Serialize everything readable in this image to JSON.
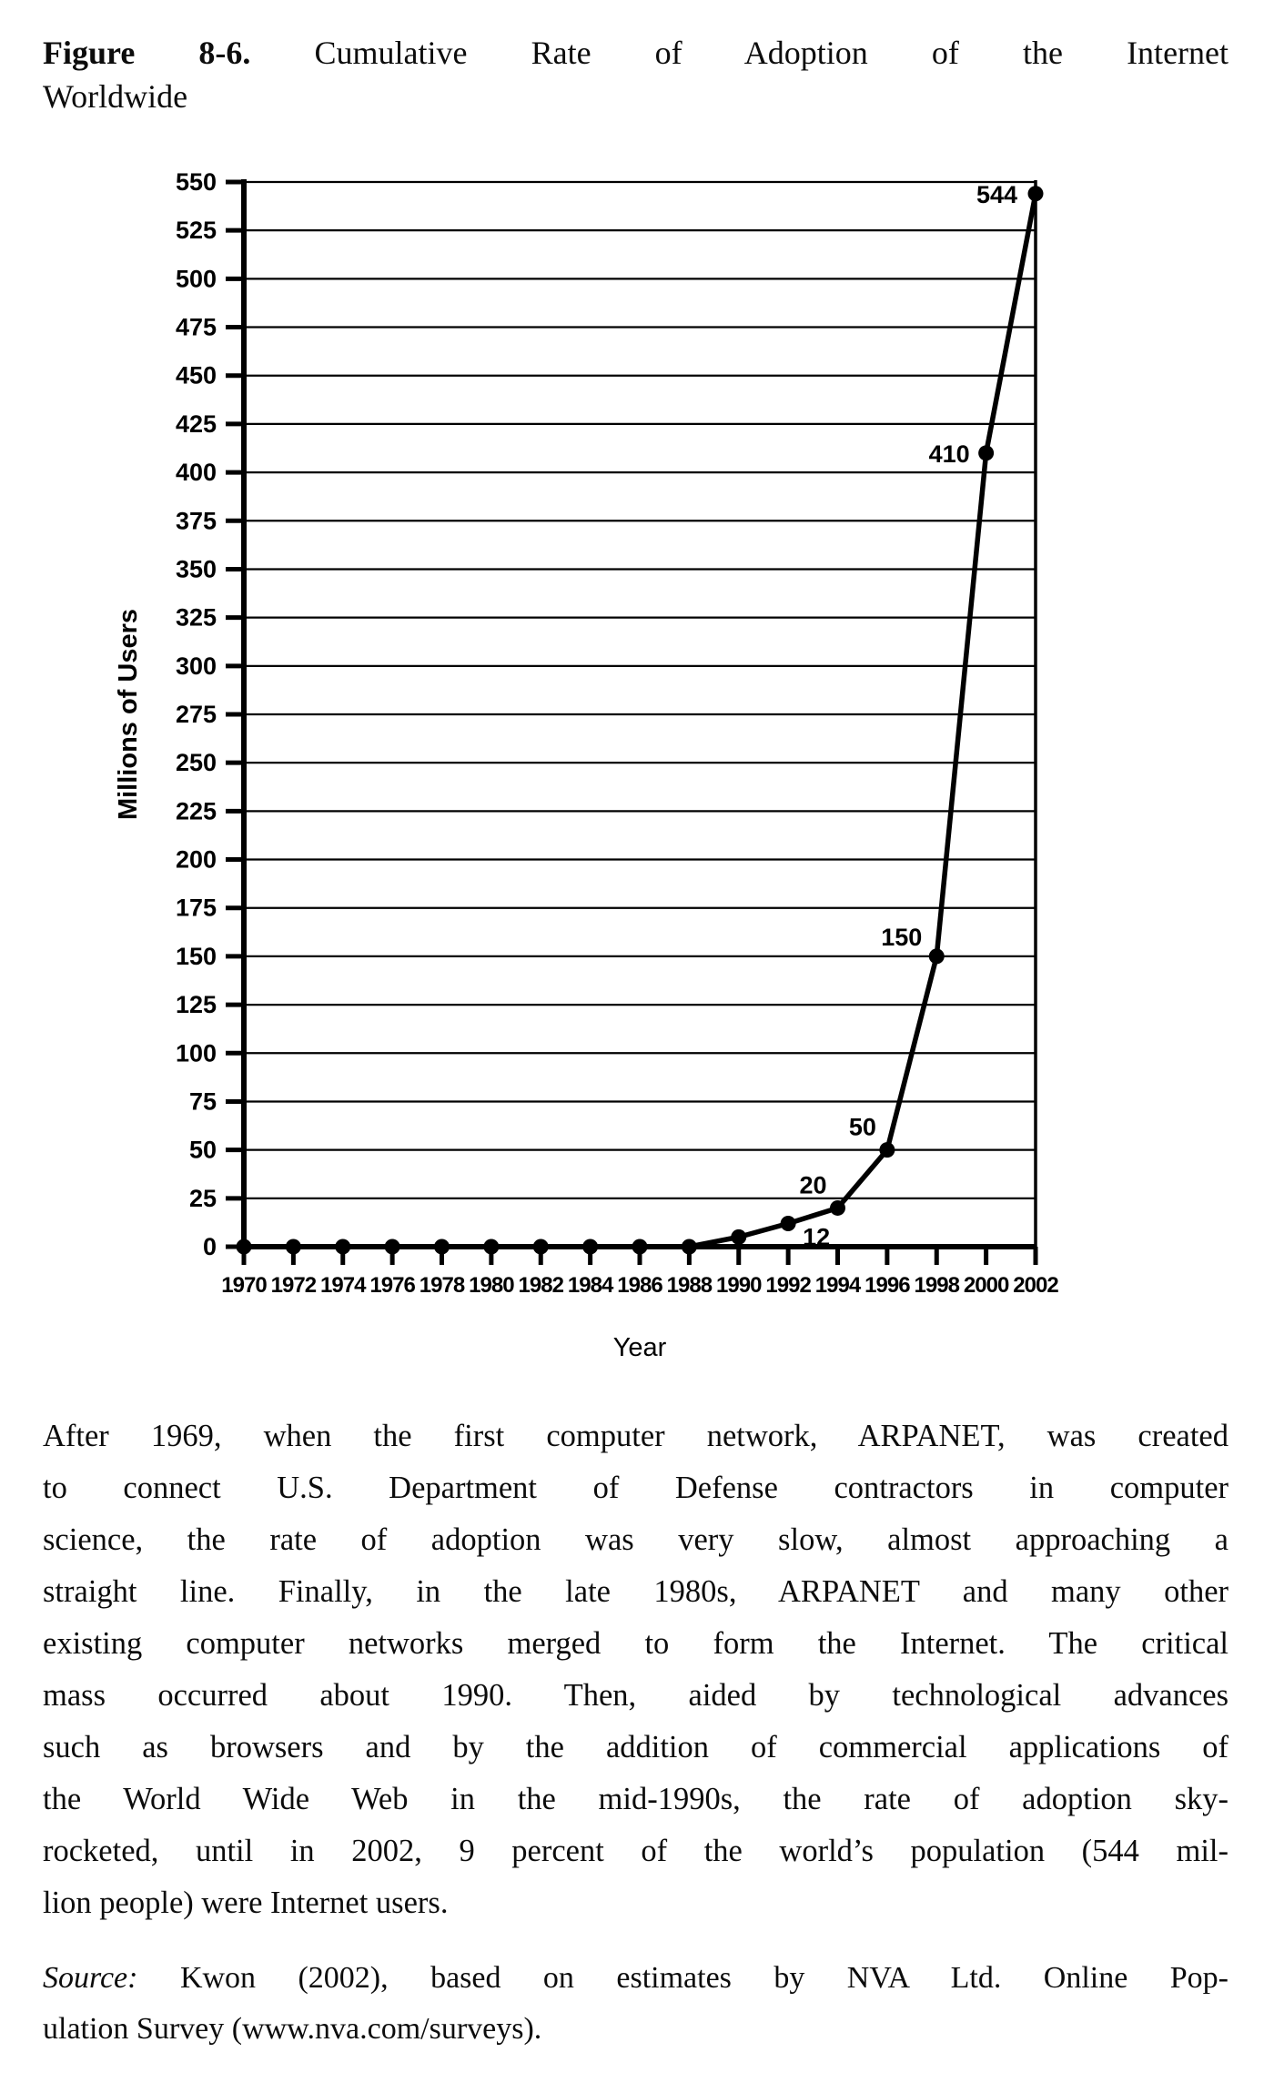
{
  "figure_caption": {
    "label": "Figure 8-6.",
    "title_line1": "Cumulative Rate of Adoption of the Internet",
    "title_line2": "Worldwide"
  },
  "chart_data": {
    "type": "line",
    "title": "Cumulative Rate of Adoption of the Internet Worldwide",
    "x": [
      1970,
      1972,
      1974,
      1976,
      1978,
      1980,
      1982,
      1984,
      1986,
      1988,
      1990,
      1992,
      1994,
      1996,
      1998,
      2000,
      2002
    ],
    "y": [
      0,
      0,
      0,
      0,
      0,
      0,
      0,
      0,
      0,
      0,
      5,
      12,
      20,
      50,
      150,
      410,
      544
    ],
    "point_labels": [
      "",
      "",
      "",
      "",
      "",
      "",
      "",
      "",
      "",
      "",
      "",
      "12",
      "20",
      "50",
      "150",
      "410",
      "544"
    ],
    "xlabel": "Year",
    "ylabel": "Millions of Users",
    "ylim": [
      0,
      550
    ],
    "ytick_step": 25,
    "xtick_step": 2,
    "grid": "horizontal",
    "legend": "none",
    "line_color": "#000000",
    "marker": "circle"
  },
  "body_paragraph": {
    "lines": [
      "After 1969, when the first computer network, ARPANET, was created",
      "to connect U.S. Department of Defense contractors in computer",
      "science, the rate of adoption was very slow, almost approaching a",
      "straight line. Finally, in the late 1980s, ARPANET and many other",
      "existing computer networks merged to form the Internet. The critical",
      "mass occurred about 1990. Then, aided by technological advances",
      "such as browsers and by the addition of commercial applications of",
      "the World Wide Web in the mid-1990s, the rate of adoption sky-",
      "rocketed, until in 2002, 9 percent of the world’s population (544 mil-",
      "lion people) were Internet users."
    ]
  },
  "source_note": {
    "prefix": "Source:",
    "line1_rest": "Kwon (2002), based on estimates by NVA Ltd. Online Pop-",
    "line2": "ulation Survey (www.nva.com/surveys)."
  }
}
